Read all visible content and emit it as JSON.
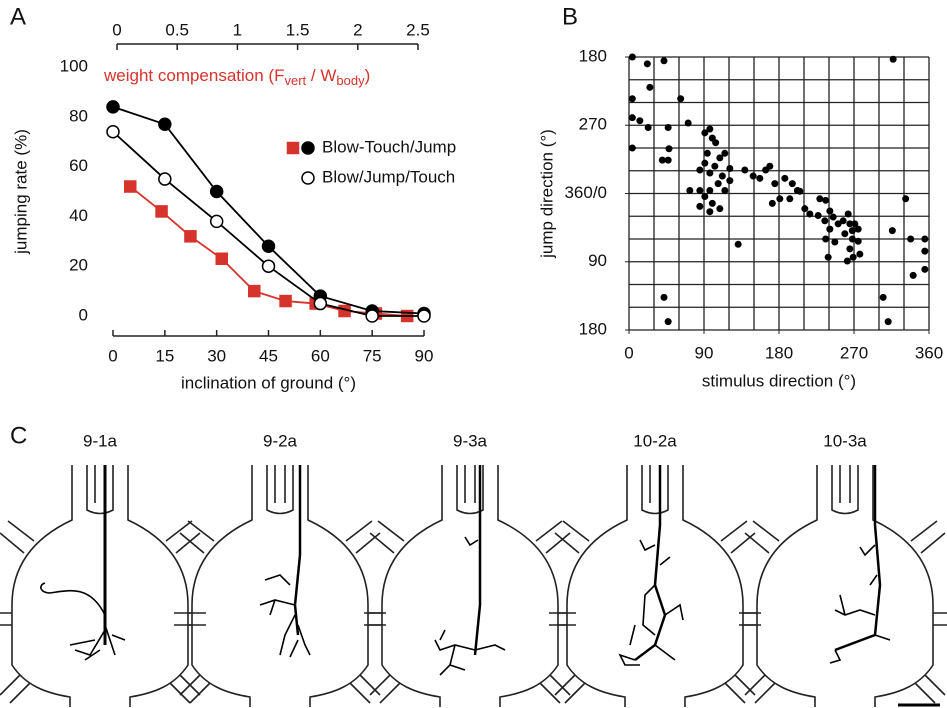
{
  "chart_data": [
    {
      "type": "line",
      "panel_label": "A",
      "xlabel": "inclination of ground (°)",
      "ylabel": "jumping rate (%)",
      "x2label_parts": [
        "weight compensation (F",
        "vert",
        " / W",
        "body",
        ")"
      ],
      "x2label_color": "#d6332c",
      "xlim": [
        0,
        90
      ],
      "xticks": [
        0,
        15,
        30,
        45,
        60,
        75,
        90
      ],
      "x2lim": [
        0,
        2.5
      ],
      "x2ticks": [
        0,
        0.5,
        1,
        1.5,
        2,
        2.5
      ],
      "ylim": [
        0,
        100
      ],
      "yticks": [
        0,
        20,
        40,
        60,
        80,
        100
      ],
      "series": [
        {
          "color": "#d6332c",
          "marker": "square",
          "filled": true,
          "axis": "x2",
          "x": [
            0.11,
            0.37,
            0.61,
            0.87,
            1.14,
            1.4,
            1.65,
            1.89,
            2.15,
            2.41
          ],
          "values": [
            52,
            42,
            32,
            23,
            10,
            6,
            5,
            2,
            1,
            0
          ]
        },
        {
          "name": "Blow-Touch/Jump",
          "color": "#000000",
          "marker": "circle",
          "filled": true,
          "x": [
            0,
            15,
            30,
            45,
            60,
            75,
            90
          ],
          "values": [
            84,
            77,
            50,
            28,
            8,
            2,
            1
          ]
        },
        {
          "name": "Blow/Jump/Touch",
          "color": "#000000",
          "marker": "circle",
          "filled": false,
          "x": [
            0,
            15,
            30,
            45,
            60,
            75,
            90
          ],
          "values": [
            74,
            55,
            38,
            20,
            5,
            0,
            0
          ]
        }
      ]
    },
    {
      "type": "scatter",
      "panel_label": "B",
      "xlabel": "stimulus direction (°)",
      "ylabel": "jump direction (°)",
      "xlim": [
        0,
        360
      ],
      "xticks": [
        0,
        90,
        180,
        270,
        360
      ],
      "ylim": [
        540,
        180
      ],
      "yticks": [
        180,
        270,
        {
          "value": 360,
          "label": "360/0"
        },
        {
          "value": 450,
          "label": "90"
        },
        {
          "value": 540,
          "label": "180"
        }
      ],
      "xgrid": [
        0,
        30,
        60,
        90,
        120,
        150,
        180,
        210,
        240,
        270,
        300,
        330,
        360
      ],
      "ygrid": [
        180,
        210,
        240,
        270,
        300,
        330,
        360,
        390,
        420,
        450,
        480,
        510,
        540
      ],
      "color": "#000000",
      "x": [
        4,
        4,
        4,
        4,
        13,
        22,
        25,
        23,
        42,
        40,
        47,
        47,
        48,
        62,
        71,
        42,
        47,
        91,
        97,
        100,
        94,
        104,
        109,
        91,
        103,
        115,
        85,
        97,
        112,
        121,
        73,
        85,
        97,
        107,
        115,
        121,
        91,
        100,
        109,
        97,
        85,
        131,
        139,
        149,
        157,
        164,
        169,
        175,
        187,
        196,
        202,
        193,
        205,
        211,
        217,
        181,
        172,
        229,
        236,
        241,
        227,
        235,
        241,
        236,
        245,
        247,
        239,
        251,
        257,
        263,
        265,
        259,
        268,
        271,
        268,
        265,
        269,
        275,
        275,
        277,
        262,
        316,
        317,
        332,
        338,
        341,
        355,
        355,
        355,
        305,
        311
      ],
      "values": [
        180,
        235,
        260,
        300,
        264,
        189,
        220,
        273,
        185,
        316,
        316,
        273,
        301,
        235,
        267,
        497,
        529,
        280,
        275,
        287,
        307,
        293,
        313,
        320,
        324,
        307,
        329,
        333,
        337,
        327,
        356,
        356,
        356,
        347,
        356,
        343,
        364,
        373,
        380,
        384,
        377,
        427,
        329,
        337,
        340,
        329,
        324,
        347,
        340,
        347,
        356,
        367,
        357,
        380,
        387,
        367,
        373,
        367,
        369,
        383,
        389,
        396,
        407,
        420,
        391,
        424,
        444,
        400,
        396,
        387,
        400,
        413,
        409,
        400,
        420,
        433,
        444,
        407,
        423,
        440,
        449,
        409,
        183,
        367,
        420,
        468,
        420,
        436,
        460,
        497,
        529
      ]
    }
  ],
  "panel_c": {
    "panel_label": "C",
    "labels": [
      "9-1a",
      "9-2a",
      "9-3a",
      "10-2a",
      "10-3a"
    ]
  }
}
